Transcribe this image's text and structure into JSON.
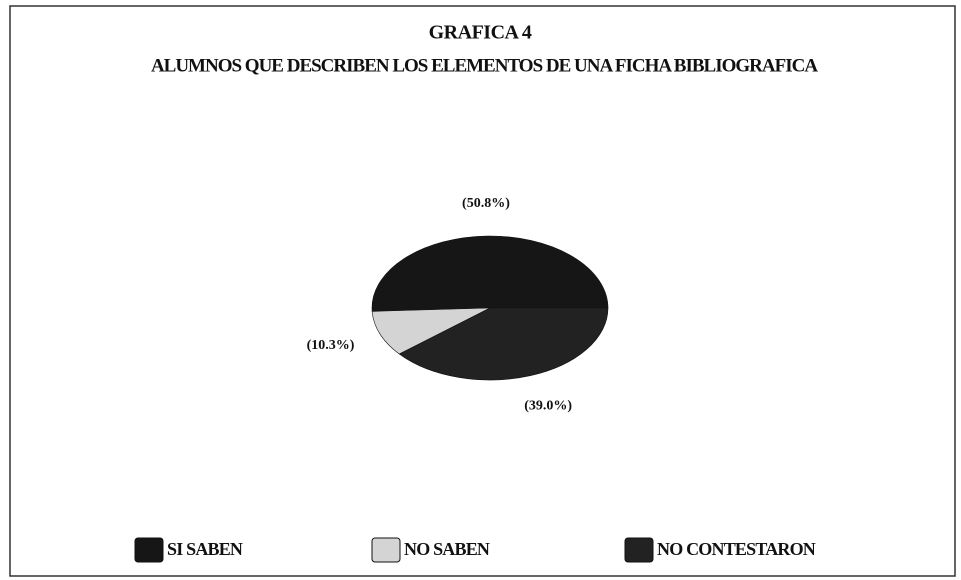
{
  "chart_data": {
    "type": "pie",
    "title": "GRAFICA 4",
    "subtitle": "ALUMNOS QUE DESCRIBEN LOS ELEMENTOS DE UNA FICHA BIBLIOGRAFICA",
    "categories": [
      "SI SABEN",
      "NO SABEN",
      "NO CONTESTARON"
    ],
    "values": [
      50.8,
      10.3,
      39.0
    ],
    "value_labels": [
      "(50.8%)",
      "(10.3%)",
      "(39.0%)"
    ],
    "colors": [
      "#161616",
      "#d4d4d4",
      "#222222"
    ],
    "legend": "bottom"
  }
}
